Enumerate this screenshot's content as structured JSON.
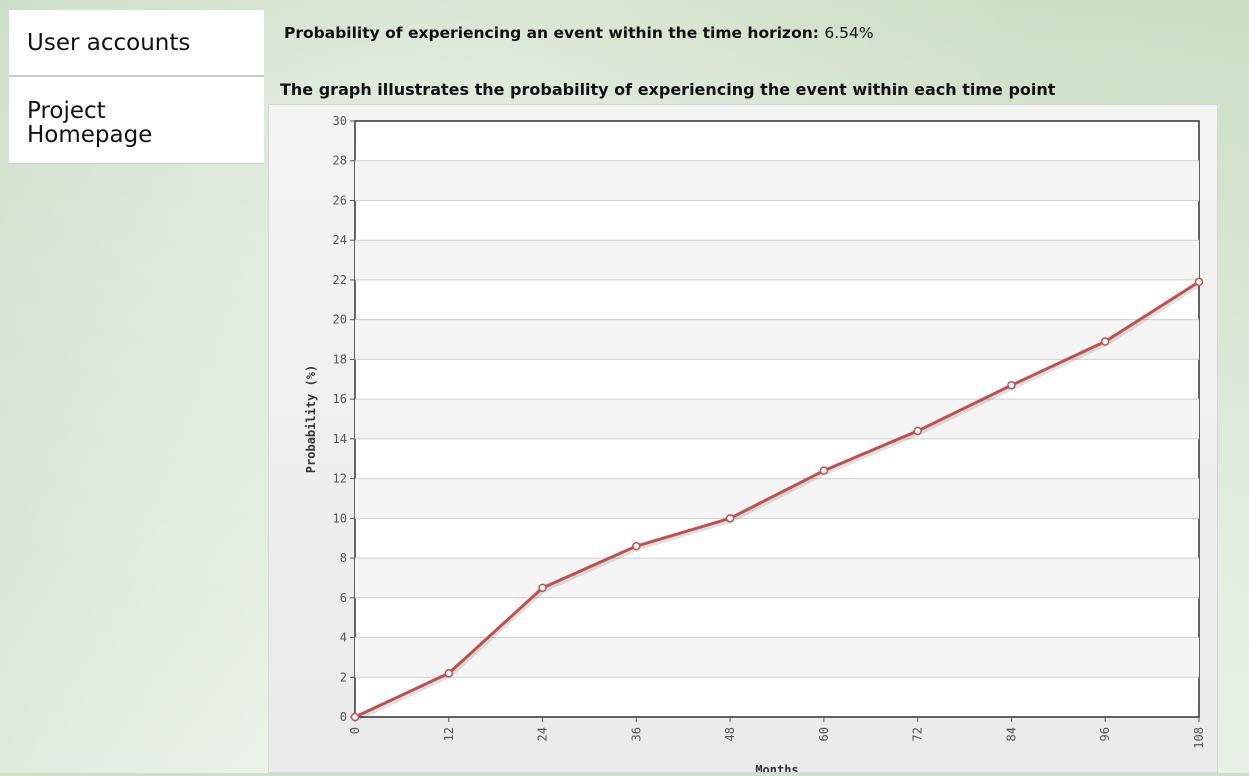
{
  "sidebar": {
    "items": [
      {
        "label": "User accounts"
      },
      {
        "label": "Project Homepage"
      }
    ]
  },
  "summary": {
    "label": "Probability of experiencing an event within the time horizon:",
    "value": "6.54%"
  },
  "graph_caption": "The graph illustrates the probability of experiencing the event within each time point",
  "colors": {
    "line": "#c0504d",
    "plot_bg": "#ffffff",
    "grid": "#cfcfcf"
  },
  "chart_data": {
    "type": "line",
    "xlabel": "Months",
    "ylabel": "Probability (%)",
    "x": [
      0,
      12,
      24,
      36,
      48,
      60,
      72,
      84,
      96,
      108
    ],
    "series": [
      {
        "values": [
          0,
          2.2,
          6.5,
          8.6,
          10.0,
          12.4,
          14.4,
          16.7,
          18.9,
          21.9
        ]
      }
    ],
    "xticks": [
      "0",
      "12",
      "24",
      "36",
      "48",
      "60",
      "72",
      "84",
      "96",
      "108"
    ],
    "yticks": [
      "0",
      "2",
      "4",
      "6",
      "8",
      "10",
      "12",
      "14",
      "16",
      "18",
      "20",
      "22",
      "24",
      "26",
      "28",
      "30"
    ],
    "xlim": [
      0,
      108
    ],
    "ylim": [
      0,
      30
    ],
    "grid": true
  }
}
